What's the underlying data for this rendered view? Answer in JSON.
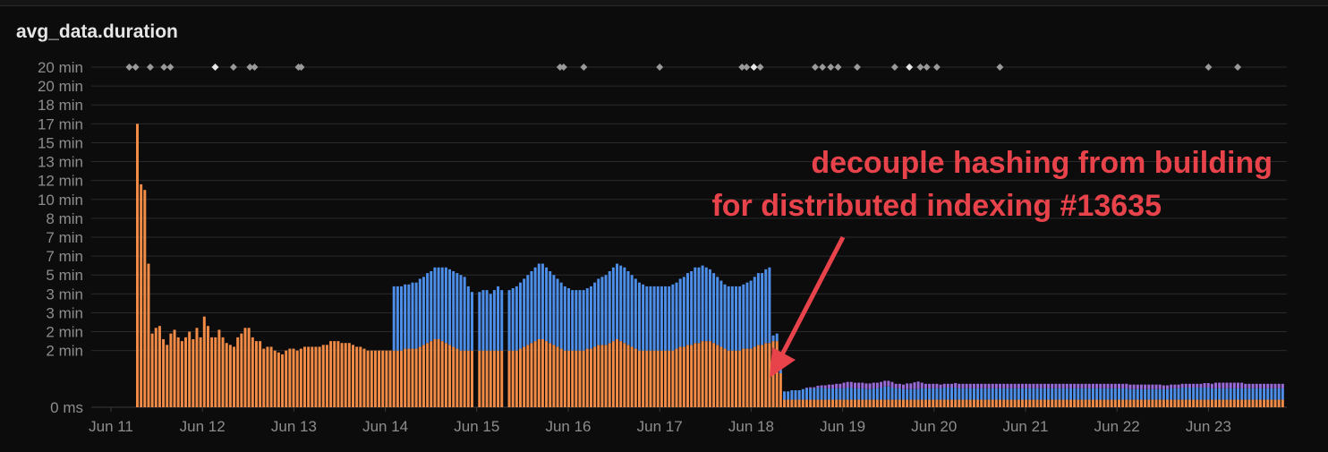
{
  "panel": {
    "title": "avg_data.duration"
  },
  "chart_data": {
    "type": "bar",
    "stacked": true,
    "title": "avg_data.duration",
    "y_ticks": [
      "0 ms",
      "2 min",
      "2 min",
      "3 min",
      "3 min",
      "5 min",
      "7 min",
      "7 min",
      "8 min",
      "10 min",
      "12 min",
      "13 min",
      "15 min",
      "17 min",
      "18 min",
      "20 min",
      "20 min"
    ],
    "y_tick_values": [
      0,
      1.5,
      2,
      2.5,
      3,
      3.5,
      4,
      4.5,
      5,
      5.5,
      6,
      6.5,
      7,
      7.5,
      8,
      8.5,
      9
    ],
    "ylim": [
      0,
      9
    ],
    "x_ticks": [
      "Jun 11",
      "Jun 12",
      "Jun 13",
      "Jun 14",
      "Jun 15",
      "Jun 16",
      "Jun 17",
      "Jun 18",
      "Jun 19",
      "Jun 20",
      "Jun 21",
      "Jun 22",
      "Jun 23"
    ],
    "x_range": [
      11,
      23.85
    ],
    "grid": true,
    "colors": {
      "series1": "#f28b46",
      "series2": "#4d8ee8",
      "series3": "#9a6ad9",
      "marker": "#9a9a9a",
      "marker_highlight": "#e6e6e6",
      "annotation": "#e8434b",
      "grid": "#2a2a2c"
    },
    "series": [
      {
        "values": [
          7.5,
          5.9,
          5.75,
          3.8,
          1.95,
          2.1,
          2.15,
          1.8,
          1.65,
          1.95,
          2.05,
          1.85,
          1.75,
          1.85,
          2.0,
          1.8,
          2.1,
          1.85,
          2.4,
          2.15,
          1.85,
          1.85,
          2.05,
          1.85,
          1.7,
          1.65,
          1.6,
          1.85,
          1.95,
          2.1,
          2.1,
          1.85,
          1.75,
          1.75,
          1.55,
          1.6,
          1.6,
          1.5,
          1.45,
          1.4,
          1.5,
          1.55,
          1.55,
          1.5,
          1.55,
          1.6,
          1.6,
          1.6,
          1.6,
          1.6,
          1.65,
          1.65,
          1.75,
          1.75,
          1.75,
          1.7,
          1.7,
          1.7,
          1.65,
          1.6,
          1.6,
          1.55,
          1.5,
          1.5,
          1.5,
          1.5,
          1.5,
          1.5,
          1.5,
          1.5,
          1.5,
          1.5,
          1.55,
          1.55,
          1.55,
          1.55,
          1.6,
          1.65,
          1.7,
          1.75,
          1.8,
          1.8,
          1.75,
          1.7,
          1.65,
          1.6,
          1.55,
          1.5,
          1.5,
          1.5,
          1.5,
          0,
          1.5,
          1.5,
          1.5,
          1.5,
          1.5,
          1.5,
          1.5,
          0,
          1.5,
          1.5,
          1.5,
          1.55,
          1.6,
          1.65,
          1.7,
          1.75,
          1.8,
          1.8,
          1.75,
          1.7,
          1.65,
          1.6,
          1.55,
          1.5,
          1.5,
          1.5,
          1.5,
          1.5,
          1.5,
          1.55,
          1.55,
          1.6,
          1.65,
          1.65,
          1.65,
          1.7,
          1.75,
          1.8,
          1.75,
          1.7,
          1.65,
          1.6,
          1.55,
          1.5,
          1.5,
          1.5,
          1.5,
          1.5,
          1.5,
          1.5,
          1.5,
          1.5,
          1.5,
          1.55,
          1.6,
          1.6,
          1.65,
          1.65,
          1.7,
          1.7,
          1.75,
          1.75,
          1.75,
          1.7,
          1.65,
          1.6,
          1.55,
          1.5,
          1.5,
          1.5,
          1.5,
          1.55,
          1.55,
          1.55,
          1.6,
          1.65,
          1.65,
          1.7,
          1.7,
          1.75,
          1.75,
          0.9,
          0.2,
          0.2,
          0.2,
          0.2,
          0.2,
          0.2,
          0.2,
          0.2,
          0.2,
          0.2,
          0.2,
          0.2,
          0.2,
          0.2,
          0.2,
          0.2,
          0.2,
          0.2,
          0.2,
          0.2,
          0.2,
          0.2,
          0.2,
          0.2,
          0.2,
          0.2,
          0.2,
          0.2,
          0.2,
          0.2,
          0.2,
          0.2,
          0.2,
          0.2,
          0.2,
          0.2,
          0.2,
          0.2,
          0.2,
          0.2,
          0.2,
          0.2,
          0.2,
          0.2,
          0.2,
          0.2,
          0.2,
          0.2,
          0.2,
          0.2,
          0.2,
          0.2,
          0.2,
          0.2,
          0.2,
          0.2,
          0.2,
          0.2,
          0.2,
          0.2,
          0.2,
          0.2,
          0.2,
          0.2,
          0.2,
          0.2,
          0.2,
          0.2,
          0.2,
          0.2,
          0.2,
          0.2,
          0.2,
          0.2,
          0.2,
          0.2,
          0.2,
          0.2,
          0.2,
          0.2,
          0.2,
          0.2,
          0.2,
          0.2,
          0.2,
          0.2,
          0.2,
          0.2,
          0.2,
          0.2,
          0.2,
          0.2,
          0.2,
          0.2,
          0.2,
          0.2,
          0.2,
          0.2,
          0.2,
          0.2,
          0.2,
          0.2,
          0.2,
          0.2,
          0.2,
          0.2,
          0.2,
          0.2,
          0.2,
          0.2,
          0.2,
          0.2,
          0.2,
          0.2,
          0.2,
          0.2,
          0.2,
          0.2,
          0.2,
          0.2,
          0.2,
          0.2,
          0.2,
          0.2,
          0.2,
          0.2,
          0.2,
          0.2,
          0.2,
          0.2,
          0.2,
          0.2,
          0.2,
          0.2,
          0.2
        ]
      },
      {
        "values": [
          0,
          0,
          0,
          0,
          0,
          0,
          0,
          0,
          0,
          0,
          0,
          0,
          0,
          0,
          0,
          0,
          0,
          0,
          0,
          0,
          0,
          0,
          0,
          0,
          0,
          0,
          0,
          0,
          0,
          0,
          0,
          0,
          0,
          0,
          0,
          0,
          0,
          0,
          0,
          0,
          0,
          0,
          0,
          0,
          0,
          0,
          0,
          0,
          0,
          0,
          0,
          0,
          0,
          0,
          0,
          0,
          0,
          0,
          0,
          0,
          0,
          0,
          0,
          0,
          0,
          0,
          0,
          0,
          0,
          1.7,
          1.7,
          1.7,
          1.7,
          1.7,
          1.75,
          1.75,
          1.8,
          1.8,
          1.85,
          1.85,
          1.9,
          1.9,
          1.95,
          2.0,
          2.0,
          2.0,
          2.0,
          2.0,
          1.95,
          1.7,
          1.55,
          0,
          1.55,
          1.6,
          1.6,
          1.5,
          1.6,
          1.7,
          1.6,
          0,
          1.6,
          1.65,
          1.7,
          1.75,
          1.8,
          1.85,
          1.9,
          1.95,
          2.0,
          2.0,
          1.95,
          1.9,
          1.85,
          1.8,
          1.75,
          1.7,
          1.65,
          1.6,
          1.6,
          1.6,
          1.6,
          1.6,
          1.65,
          1.7,
          1.75,
          1.8,
          1.85,
          1.9,
          1.95,
          2.0,
          2.0,
          2.0,
          1.95,
          1.9,
          1.85,
          1.8,
          1.75,
          1.7,
          1.7,
          1.7,
          1.7,
          1.7,
          1.7,
          1.7,
          1.75,
          1.75,
          1.8,
          1.85,
          1.9,
          1.95,
          2.0,
          2.0,
          2.0,
          1.95,
          1.9,
          1.85,
          1.8,
          1.75,
          1.7,
          1.7,
          1.7,
          1.7,
          1.7,
          1.7,
          1.75,
          1.8,
          1.85,
          1.9,
          1.9,
          1.95,
          2.0,
          0.15,
          0.2,
          0.2,
          0.22,
          0.22,
          0.25,
          0.25,
          0.25,
          0.28,
          0.3,
          0.3,
          0.3,
          0.32,
          0.32,
          0.3,
          0.3,
          0.3,
          0.3,
          0.3,
          0.3,
          0.32,
          0.32,
          0.3,
          0.3,
          0.3,
          0.28,
          0.28,
          0.3,
          0.3,
          0.32,
          0.35,
          0.35,
          0.32,
          0.3,
          0.3,
          0.28,
          0.28,
          0.28,
          0.28,
          0.28,
          0.3,
          0.3,
          0.3,
          0.3,
          0.3,
          0.3,
          0.32,
          0.32,
          0.32,
          0.32,
          0.3,
          0.3,
          0.3,
          0.3,
          0.3,
          0.3,
          0.3,
          0.3,
          0.3,
          0.3,
          0.3,
          0.3,
          0.3,
          0.3,
          0.3,
          0.3,
          0.3,
          0.3,
          0.3,
          0.3,
          0.3,
          0.3,
          0.3,
          0.3,
          0.3,
          0.3,
          0.3,
          0.3,
          0.3,
          0.3,
          0.3,
          0.3,
          0.3,
          0.3,
          0.3,
          0.3,
          0.3,
          0.3,
          0.3,
          0.3,
          0.3,
          0.3,
          0.3,
          0.3,
          0.3,
          0.3,
          0.28,
          0.28,
          0.28,
          0.28,
          0.28,
          0.28,
          0.28,
          0.28,
          0.28,
          0.28,
          0.28,
          0.3,
          0.3,
          0.3,
          0.32,
          0.32,
          0.32,
          0.32,
          0.32,
          0.32,
          0.32,
          0.32,
          0.3,
          0.3,
          0.3,
          0.3,
          0.3,
          0.3,
          0.3,
          0.3,
          0.3,
          0.3,
          0.3,
          0.3,
          0.3,
          0.3,
          0.3,
          0.3,
          0.3,
          0.3,
          0.3,
          0.3,
          0.3,
          0.3,
          0.3,
          0.3,
          0.3
        ]
      },
      {
        "values": [
          0,
          0,
          0,
          0,
          0,
          0,
          0,
          0,
          0,
          0,
          0,
          0,
          0,
          0,
          0,
          0,
          0,
          0,
          0,
          0,
          0,
          0,
          0,
          0,
          0,
          0,
          0,
          0,
          0,
          0,
          0,
          0,
          0,
          0,
          0,
          0,
          0,
          0,
          0,
          0,
          0,
          0,
          0,
          0,
          0,
          0,
          0,
          0,
          0,
          0,
          0,
          0,
          0,
          0,
          0,
          0,
          0,
          0,
          0,
          0,
          0,
          0,
          0,
          0,
          0,
          0,
          0,
          0,
          0,
          0,
          0,
          0,
          0,
          0,
          0,
          0,
          0,
          0,
          0,
          0,
          0,
          0,
          0,
          0,
          0,
          0,
          0,
          0,
          0,
          0,
          0,
          0,
          0,
          0,
          0,
          0,
          0,
          0,
          0,
          0,
          0,
          0,
          0,
          0,
          0,
          0,
          0,
          0,
          0,
          0,
          0,
          0,
          0,
          0,
          0,
          0,
          0,
          0,
          0,
          0,
          0,
          0,
          0,
          0,
          0,
          0,
          0,
          0,
          0,
          0,
          0,
          0,
          0,
          0,
          0,
          0,
          0,
          0,
          0,
          0,
          0,
          0,
          0,
          0,
          0,
          0,
          0,
          0,
          0,
          0,
          0,
          0,
          0,
          0,
          0,
          0,
          0,
          0,
          0,
          0,
          0,
          0,
          0,
          0,
          0,
          0,
          0,
          0,
          0,
          0,
          0,
          0,
          0,
          0,
          0,
          0,
          0,
          0,
          0,
          0,
          0.02,
          0.03,
          0.03,
          0.05,
          0.06,
          0.08,
          0.1,
          0.1,
          0.12,
          0.12,
          0.15,
          0.15,
          0.15,
          0.15,
          0.15,
          0.15,
          0.15,
          0.15,
          0.15,
          0.15,
          0.15,
          0.15,
          0.15,
          0.15,
          0.12,
          0.12,
          0.12,
          0.15,
          0.15,
          0.18,
          0.2,
          0.15,
          0.12,
          0.12,
          0.12,
          0.12,
          0.1,
          0.1,
          0.1,
          0.1,
          0.12,
          0.12,
          0.12,
          0.12,
          0.12,
          0.12,
          0.12,
          0.12,
          0.12,
          0.12,
          0.12,
          0.12,
          0.12,
          0.12,
          0.12,
          0.12,
          0.12,
          0.12,
          0.12,
          0.12,
          0.12,
          0.12,
          0.12,
          0.12,
          0.12,
          0.12,
          0.12,
          0.12,
          0.12,
          0.12,
          0.12,
          0.12,
          0.12,
          0.12,
          0.12,
          0.12,
          0.12,
          0.12,
          0.12,
          0.12,
          0.12,
          0.12,
          0.12,
          0.12,
          0.12,
          0.12,
          0.12,
          0.12,
          0.12,
          0.12,
          0.12,
          0.12,
          0.12,
          0.12,
          0.12,
          0.12,
          0.1,
          0.1,
          0.1,
          0.1,
          0.1,
          0.1,
          0.1,
          0.1,
          0.1,
          0.1,
          0.1,
          0.12,
          0.12,
          0.12,
          0.15,
          0.15,
          0.15,
          0.15,
          0.15,
          0.15,
          0.15,
          0.15,
          0.12,
          0.12,
          0.12,
          0.12,
          0.12,
          0.12,
          0.12,
          0.12,
          0.12,
          0.12,
          0.12,
          0.12,
          0.12,
          0.12,
          0.12,
          0.12,
          0.12,
          0.12,
          0.12,
          0.12,
          0.12,
          0.12,
          0.12,
          0.12,
          0.12
        ]
      }
    ],
    "event_markers": [
      11.2,
      11.27,
      11.43,
      11.58,
      11.65,
      12.14,
      12.34,
      12.52,
      12.57,
      13.05,
      13.08,
      15.91,
      15.95,
      16.17,
      17.0,
      17.9,
      17.95,
      18.03,
      18.1,
      18.7,
      18.78,
      18.87,
      18.95,
      19.16,
      19.57,
      19.73,
      19.85,
      19.92,
      20.03,
      20.72,
      23.0,
      23.32
    ],
    "highlight_markers": [
      12.14,
      18.03,
      19.73
    ],
    "annotation": {
      "line1": "decouple hashing from building",
      "line2": "for distributed indexing #13635"
    }
  }
}
